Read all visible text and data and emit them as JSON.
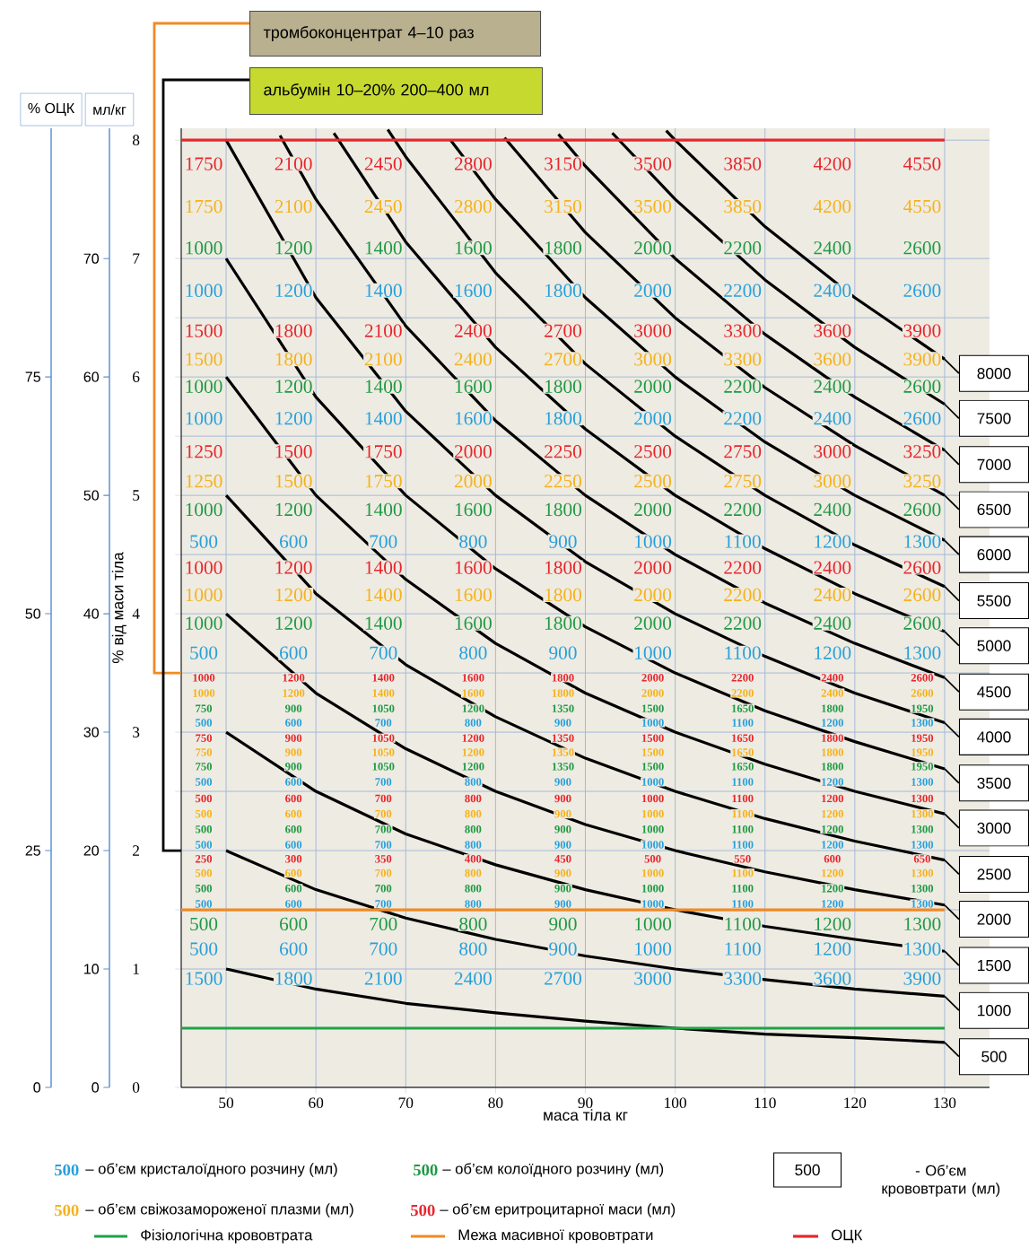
{
  "chart_data": {
    "type": "line",
    "xlabel": "маса тіла кг",
    "ylabel": "% від маси тіла",
    "y2label": "% ОЦК",
    "y3label": "мл/кг",
    "xlim": [
      45,
      135
    ],
    "ylim": [
      0,
      8.1
    ],
    "xticks": [
      50,
      60,
      70,
      80,
      90,
      100,
      110,
      120,
      130
    ],
    "yticks": [
      0,
      1,
      {
        "value": 1.5,
        "label": null
      },
      2,
      {
        "value": 2.5,
        "label": null
      },
      3,
      {
        "value": 3.5,
        "label": null
      },
      4,
      {
        "value": 4.5,
        "label": null
      },
      5,
      {
        "value": 5.5,
        "label": null
      },
      6,
      {
        "value": 6.5,
        "label": null
      },
      7,
      8
    ],
    "y2lim": [
      0,
      101.25
    ],
    "y2ticks": [
      0,
      25,
      50,
      75
    ],
    "y3lim": [
      0,
      81
    ],
    "y3ticks": [
      0,
      10,
      20,
      30,
      40,
      50,
      60,
      70
    ],
    "grid": true,
    "legend": "bottom",
    "series": [
      {
        "name": "500",
        "color": "#000000",
        "x": [
          50,
          60,
          70,
          80,
          90,
          100,
          110,
          120,
          130
        ],
        "values": [
          1.0,
          0.83,
          0.71,
          0.63,
          0.56,
          0.5,
          0.45,
          0.42,
          0.38
        ]
      },
      {
        "name": "1000",
        "color": "#000000",
        "x": [
          50,
          60,
          70,
          80,
          90,
          100,
          110,
          120,
          130
        ],
        "values": [
          2.0,
          1.67,
          1.43,
          1.25,
          1.11,
          1.0,
          0.91,
          0.83,
          0.77
        ]
      },
      {
        "name": "1500",
        "color": "#000000",
        "x": [
          50,
          60,
          70,
          80,
          90,
          100,
          110,
          120,
          130
        ],
        "values": [
          3.0,
          2.5,
          2.14,
          1.88,
          1.67,
          1.5,
          1.36,
          1.25,
          1.15
        ]
      },
      {
        "name": "2000",
        "color": "#000000",
        "x": [
          50,
          60,
          70,
          80,
          90,
          100,
          110,
          120,
          130
        ],
        "values": [
          4.0,
          3.33,
          2.86,
          2.5,
          2.22,
          2.0,
          1.82,
          1.67,
          1.54
        ]
      },
      {
        "name": "2500",
        "color": "#000000",
        "x": [
          50,
          60,
          70,
          80,
          90,
          100,
          110,
          120,
          130
        ],
        "values": [
          5.0,
          4.17,
          3.57,
          3.13,
          2.78,
          2.5,
          2.27,
          2.08,
          1.92
        ]
      },
      {
        "name": "3000",
        "color": "#000000",
        "x": [
          50,
          60,
          70,
          80,
          90,
          100,
          110,
          120,
          130
        ],
        "values": [
          6.0,
          5.0,
          4.29,
          3.75,
          3.33,
          3.0,
          2.73,
          2.5,
          2.31
        ]
      },
      {
        "name": "3500",
        "color": "#000000",
        "x": [
          50,
          60,
          70,
          80,
          90,
          100,
          110,
          120,
          130
        ],
        "values": [
          7.0,
          5.83,
          5.0,
          4.38,
          3.89,
          3.5,
          3.18,
          2.92,
          2.69
        ]
      },
      {
        "name": "4000",
        "color": "#000000",
        "x": [
          50,
          60,
          70,
          80,
          90,
          100,
          110,
          120,
          130
        ],
        "values": [
          8.0,
          6.67,
          5.71,
          5.0,
          4.44,
          4.0,
          3.64,
          3.33,
          3.08
        ]
      },
      {
        "name": "4500",
        "color": "#000000",
        "x": [
          56,
          60,
          70,
          80,
          90,
          100,
          110,
          120,
          130
        ],
        "values": [
          8.04,
          7.5,
          6.43,
          5.63,
          5.0,
          4.5,
          4.09,
          3.75,
          3.46
        ]
      },
      {
        "name": "5000",
        "color": "#000000",
        "x": [
          62,
          70,
          80,
          90,
          100,
          110,
          120,
          130
        ],
        "values": [
          8.06,
          7.14,
          6.25,
          5.56,
          5.0,
          4.55,
          4.17,
          3.85
        ]
      },
      {
        "name": "5500",
        "color": "#000000",
        "x": [
          68,
          70,
          80,
          90,
          100,
          110,
          120,
          130
        ],
        "values": [
          8.09,
          7.86,
          6.88,
          6.11,
          5.5,
          5.0,
          4.58,
          4.23
        ]
      },
      {
        "name": "6000",
        "color": "#000000",
        "x": [
          75,
          80,
          90,
          100,
          110,
          120,
          130
        ],
        "values": [
          8.0,
          7.5,
          6.67,
          6.0,
          5.45,
          5.0,
          4.62
        ]
      },
      {
        "name": "6500",
        "color": "#000000",
        "x": [
          81,
          90,
          100,
          110,
          120,
          130
        ],
        "values": [
          8.02,
          7.22,
          6.5,
          5.91,
          5.42,
          5.0
        ]
      },
      {
        "name": "7000",
        "color": "#000000",
        "x": [
          87,
          90,
          100,
          110,
          120,
          130
        ],
        "values": [
          8.05,
          7.78,
          7.0,
          6.36,
          5.83,
          5.38
        ]
      },
      {
        "name": "7500",
        "color": "#000000",
        "x": [
          93,
          100,
          110,
          120,
          130
        ],
        "values": [
          8.06,
          7.5,
          6.82,
          6.25,
          5.77
        ]
      },
      {
        "name": "8000",
        "color": "#000000",
        "x": [
          99,
          100,
          110,
          120,
          130
        ],
        "values": [
          8.08,
          8.0,
          7.27,
          6.67,
          6.15
        ]
      }
    ],
    "ref_lines": [
      {
        "axis": "y",
        "value": 0.5,
        "label": "Фізіологічна крововтрата",
        "color": "#1fa347"
      },
      {
        "axis": "y",
        "value": 1.5,
        "label": "Межа масивної крововтрати",
        "color": "#f08a24"
      },
      {
        "axis": "y",
        "value": 8,
        "label": "ОЦК",
        "color": "#e8262d"
      }
    ],
    "annotations": [
      "тромбоконцентрат 4–10 раз",
      "альбумін 10–20%  200–400 мл",
      "500",
      "– об’єм кристалоїдного розчину (мл)",
      "500",
      "– об’єм колоїдного розчину (мл)",
      "500",
      "– об’єм свіжозамороженої плазми (мл)",
      "500",
      "– об’єм еритроцитарної маси (мл)",
      "500",
      "- Об’єм крововтрати (мл)",
      "1750",
      "2100",
      "2450",
      "2800",
      "3150",
      "3500",
      "3850",
      "4200",
      "4550",
      "1750",
      "2100",
      "2450",
      "2800",
      "3150",
      "3500",
      "3850",
      "4200",
      "4550",
      "1000",
      "1200",
      "1400",
      "1600",
      "1800",
      "2000",
      "2200",
      "2400",
      "2600",
      "1000",
      "1200",
      "1400",
      "1600",
      "1800",
      "2000",
      "2200",
      "2400",
      "2600",
      "1500",
      "1800",
      "2100",
      "2400",
      "2700",
      "3000",
      "3300",
      "3600",
      "3900",
      "1500",
      "1800",
      "2100",
      "2400",
      "2700",
      "3000",
      "3300",
      "3600",
      "3900",
      "1000",
      "1200",
      "1400",
      "1600",
      "1800",
      "2000",
      "2200",
      "2400",
      "2600",
      "1000",
      "1200",
      "1400",
      "1600",
      "1800",
      "2000",
      "2200",
      "2400",
      "2600",
      "1250",
      "1500",
      "1750",
      "2000",
      "2250",
      "2500",
      "2750",
      "3000",
      "3250",
      "1250",
      "1500",
      "1750",
      "2000",
      "2250",
      "2500",
      "2750",
      "3000",
      "3250",
      "1000",
      "1200",
      "1400",
      "1600",
      "1800",
      "2000",
      "2200",
      "2400",
      "2600",
      "500",
      "600",
      "700",
      "800",
      "900",
      "1000",
      "1100",
      "1200",
      "1300",
      "1000",
      "1200",
      "1400",
      "1600",
      "1800",
      "2000",
      "2200",
      "2400",
      "2600",
      "1000",
      "1200",
      "1400",
      "1600",
      "1800",
      "2000",
      "2200",
      "2400",
      "2600",
      "1000",
      "1200",
      "1400",
      "1600",
      "1800",
      "2000",
      "2200",
      "2400",
      "2600",
      "500",
      "600",
      "700",
      "800",
      "900",
      "1000",
      "1100",
      "1200",
      "1300",
      "1000",
      "1200",
      "1400",
      "1600",
      "1800",
      "2000",
      "2200",
      "2400",
      "2600",
      "1000",
      "1200",
      "1400",
      "1600",
      "1800",
      "2000",
      "2200",
      "2400",
      "2600",
      "750",
      "900",
      "1050",
      "1200",
      "1350",
      "1500",
      "1650",
      "1800",
      "1950",
      "500",
      "600",
      "700",
      "800",
      "900",
      "1000",
      "1100",
      "1200",
      "1300",
      "750",
      "900",
      "1050",
      "1200",
      "1350",
      "1500",
      "1650",
      "1800",
      "1950",
      "750",
      "900",
      "1050",
      "1200",
      "1350",
      "1500",
      "1650",
      "1800",
      "1950",
      "750",
      "900",
      "1050",
      "1200",
      "1350",
      "1500",
      "1650",
      "1800",
      "1950",
      "500",
      "600",
      "700",
      "800",
      "900",
      "1000",
      "1100",
      "1200",
      "1300",
      "500",
      "600",
      "700",
      "800",
      "900",
      "1000",
      "1100",
      "1200",
      "1300",
      "500",
      "600",
      "700",
      "800",
      "900",
      "1000",
      "1100",
      "1200",
      "1300",
      "500",
      "600",
      "700",
      "800",
      "900",
      "1000",
      "1100",
      "1200",
      "1300",
      "500",
      "600",
      "700",
      "800",
      "900",
      "1000",
      "1100",
      "1200",
      "1300",
      "250",
      "300",
      "350",
      "400",
      "450",
      "500",
      "550",
      "600",
      "650",
      "500",
      "600",
      "700",
      "800",
      "900",
      "1000",
      "1100",
      "1200",
      "1300",
      "500",
      "600",
      "700",
      "800",
      "900",
      "1000",
      "1100",
      "1200",
      "1300",
      "500",
      "600",
      "700",
      "800",
      "900",
      "1000",
      "1100",
      "1200",
      "1300",
      "500",
      "600",
      "700",
      "800",
      "900",
      "1000",
      "1100",
      "1200",
      "1300",
      "500",
      "600",
      "700",
      "800",
      "900",
      "1000",
      "1100",
      "1200",
      "1300",
      "1500",
      "1800",
      "2100",
      "2400",
      "2700",
      "3000",
      "3300",
      "3600",
      "3900"
    ]
  }
}
